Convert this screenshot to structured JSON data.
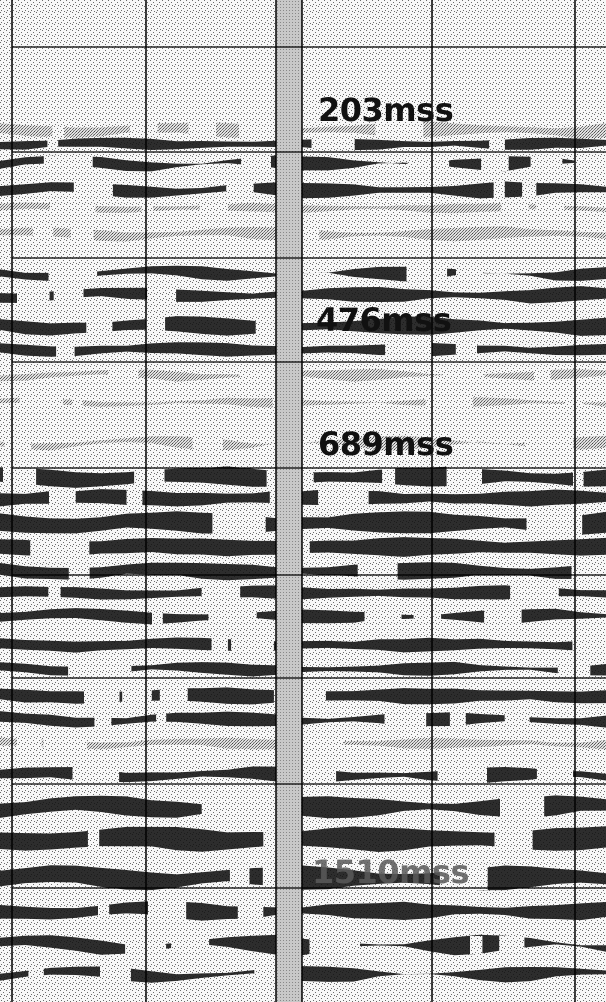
{
  "figure": {
    "depth_labels": [
      "203mss",
      "476mss",
      "689mss",
      "1510mss"
    ]
  },
  "colors": {
    "background": "#f7f7f7",
    "reflector": "#111111",
    "speckle": "#6b6b6b",
    "gridline": "#000000",
    "wellbore": "#b5b5b5"
  }
}
